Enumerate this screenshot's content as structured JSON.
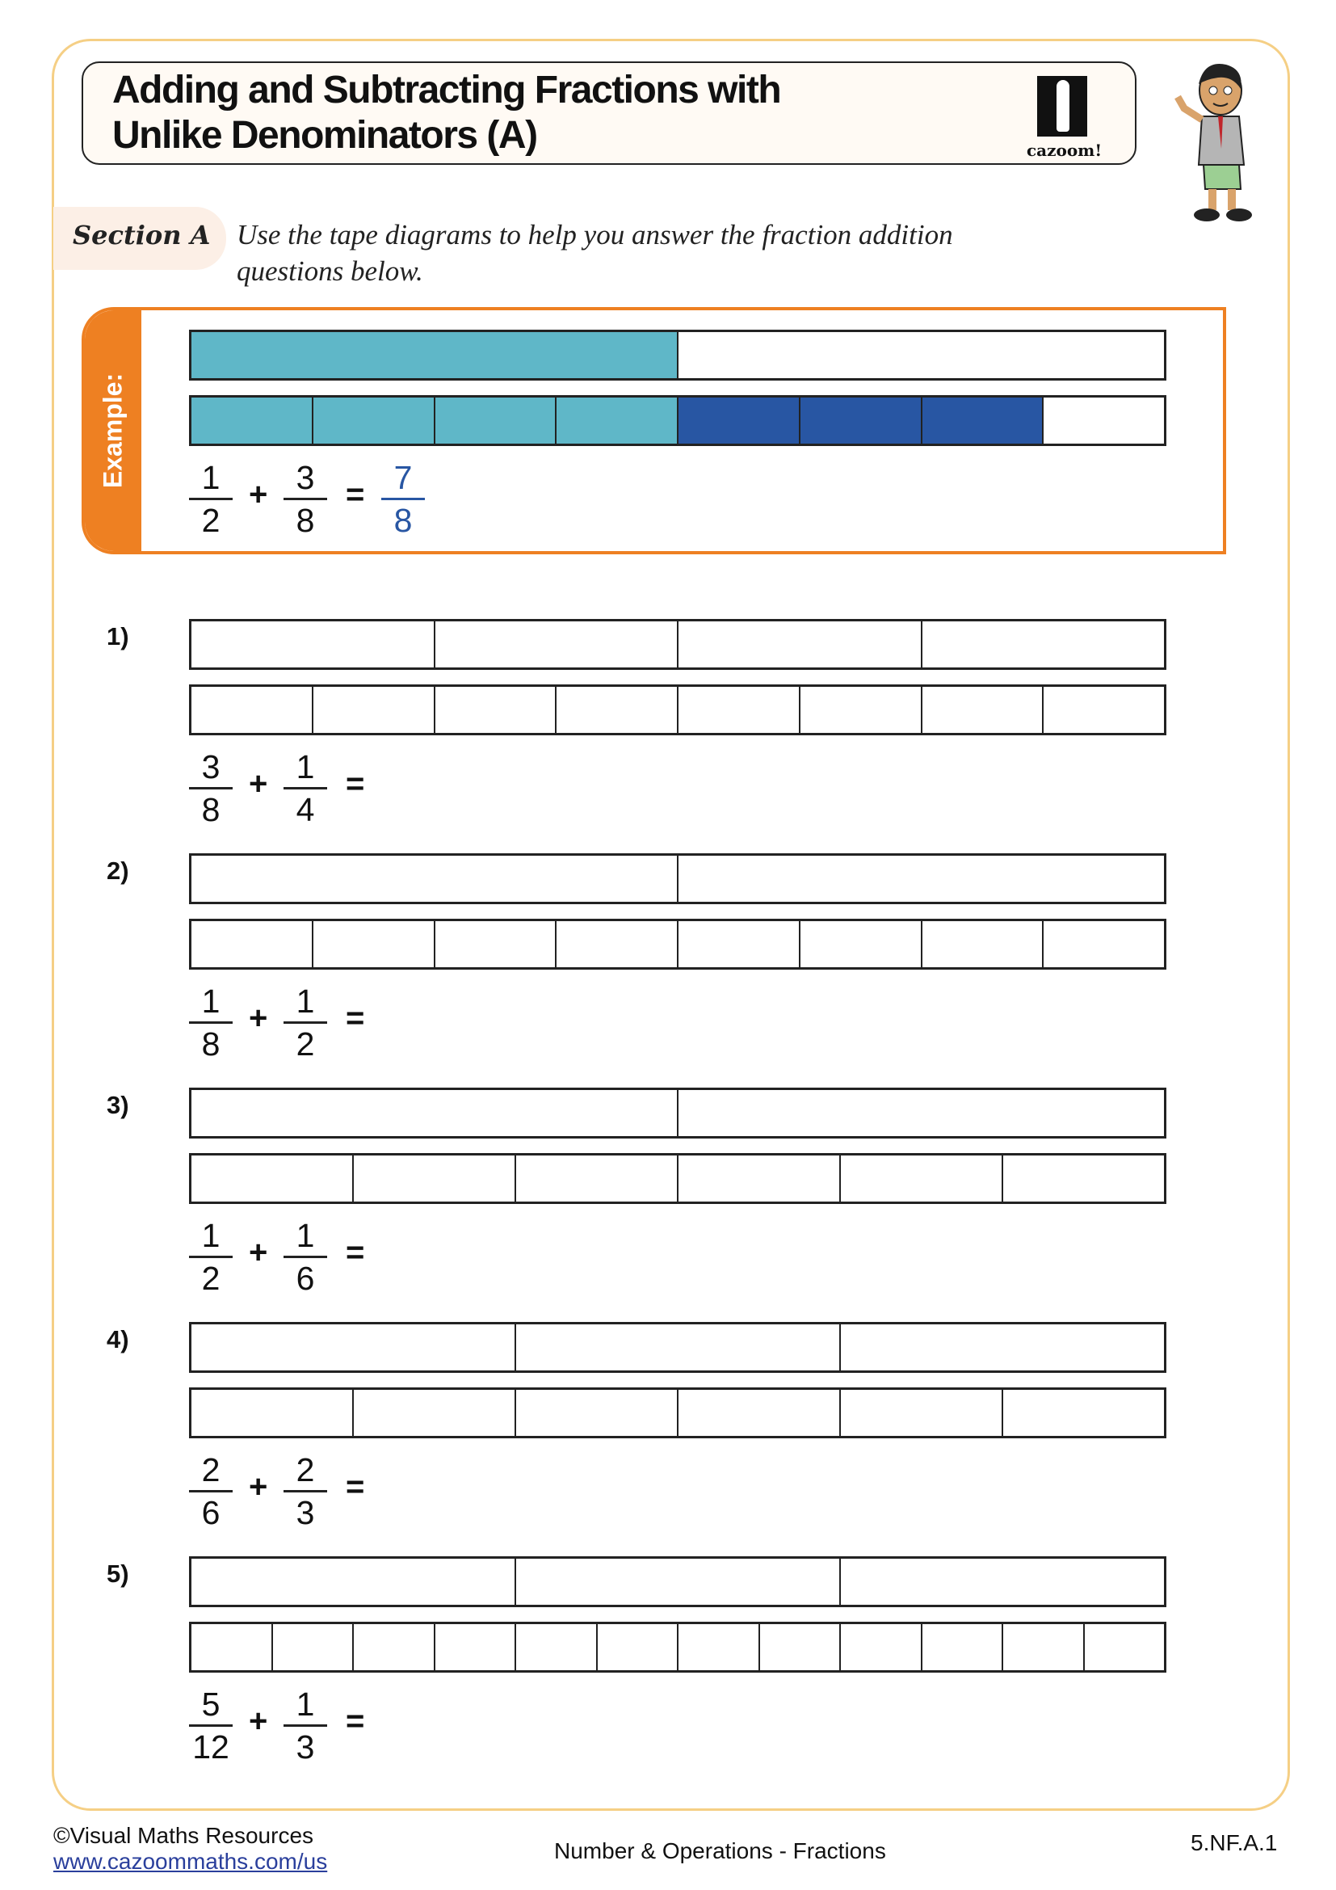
{
  "header": {
    "title_line1": "Adding and Subtracting Fractions with",
    "title_line2": "Unlike Denominators (A)",
    "logo_text": "cazoom!"
  },
  "section": {
    "label": "Section A",
    "instruction": "Use the tape diagrams to help you answer the fraction addition questions below."
  },
  "example": {
    "label": "Example:",
    "top_parts": 2,
    "top_fills": [
      "light",
      "none"
    ],
    "bottom_parts": 8,
    "bottom_fills": [
      "light",
      "light",
      "light",
      "light",
      "dark",
      "dark",
      "dark",
      "none"
    ],
    "a": {
      "num": "1",
      "den": "2"
    },
    "b": {
      "num": "3",
      "den": "8"
    },
    "answer": {
      "num": "7",
      "den": "8"
    },
    "plus": "+",
    "equals": "="
  },
  "questions": [
    {
      "label": "1)",
      "top_parts": 4,
      "bottom_parts": 8,
      "a": {
        "num": "3",
        "den": "8"
      },
      "b": {
        "num": "1",
        "den": "4"
      },
      "plus": "+",
      "equals": "="
    },
    {
      "label": "2)",
      "top_parts": 2,
      "bottom_parts": 8,
      "a": {
        "num": "1",
        "den": "8"
      },
      "b": {
        "num": "1",
        "den": "2"
      },
      "plus": "+",
      "equals": "="
    },
    {
      "label": "3)",
      "top_parts": 2,
      "bottom_parts": 6,
      "a": {
        "num": "1",
        "den": "2"
      },
      "b": {
        "num": "1",
        "den": "6"
      },
      "plus": "+",
      "equals": "="
    },
    {
      "label": "4)",
      "top_parts": 3,
      "bottom_parts": 6,
      "a": {
        "num": "2",
        "den": "6"
      },
      "b": {
        "num": "2",
        "den": "3"
      },
      "plus": "+",
      "equals": "="
    },
    {
      "label": "5)",
      "top_parts": 3,
      "bottom_parts": 12,
      "a": {
        "num": "5",
        "den": "12"
      },
      "b": {
        "num": "1",
        "den": "3"
      },
      "plus": "+",
      "equals": "="
    }
  ],
  "footer": {
    "copyright": "©Visual Maths Resources",
    "url": "www.cazoommaths.com/us",
    "topic": "Number & Operations - Fractions",
    "code": "5.NF.A.1"
  },
  "colors": {
    "accent_orange": "#ee8022",
    "fill_light": "#5fb7c8",
    "fill_dark": "#2856a3",
    "answer_blue": "#2856a3",
    "frame": "#f5cf85"
  }
}
